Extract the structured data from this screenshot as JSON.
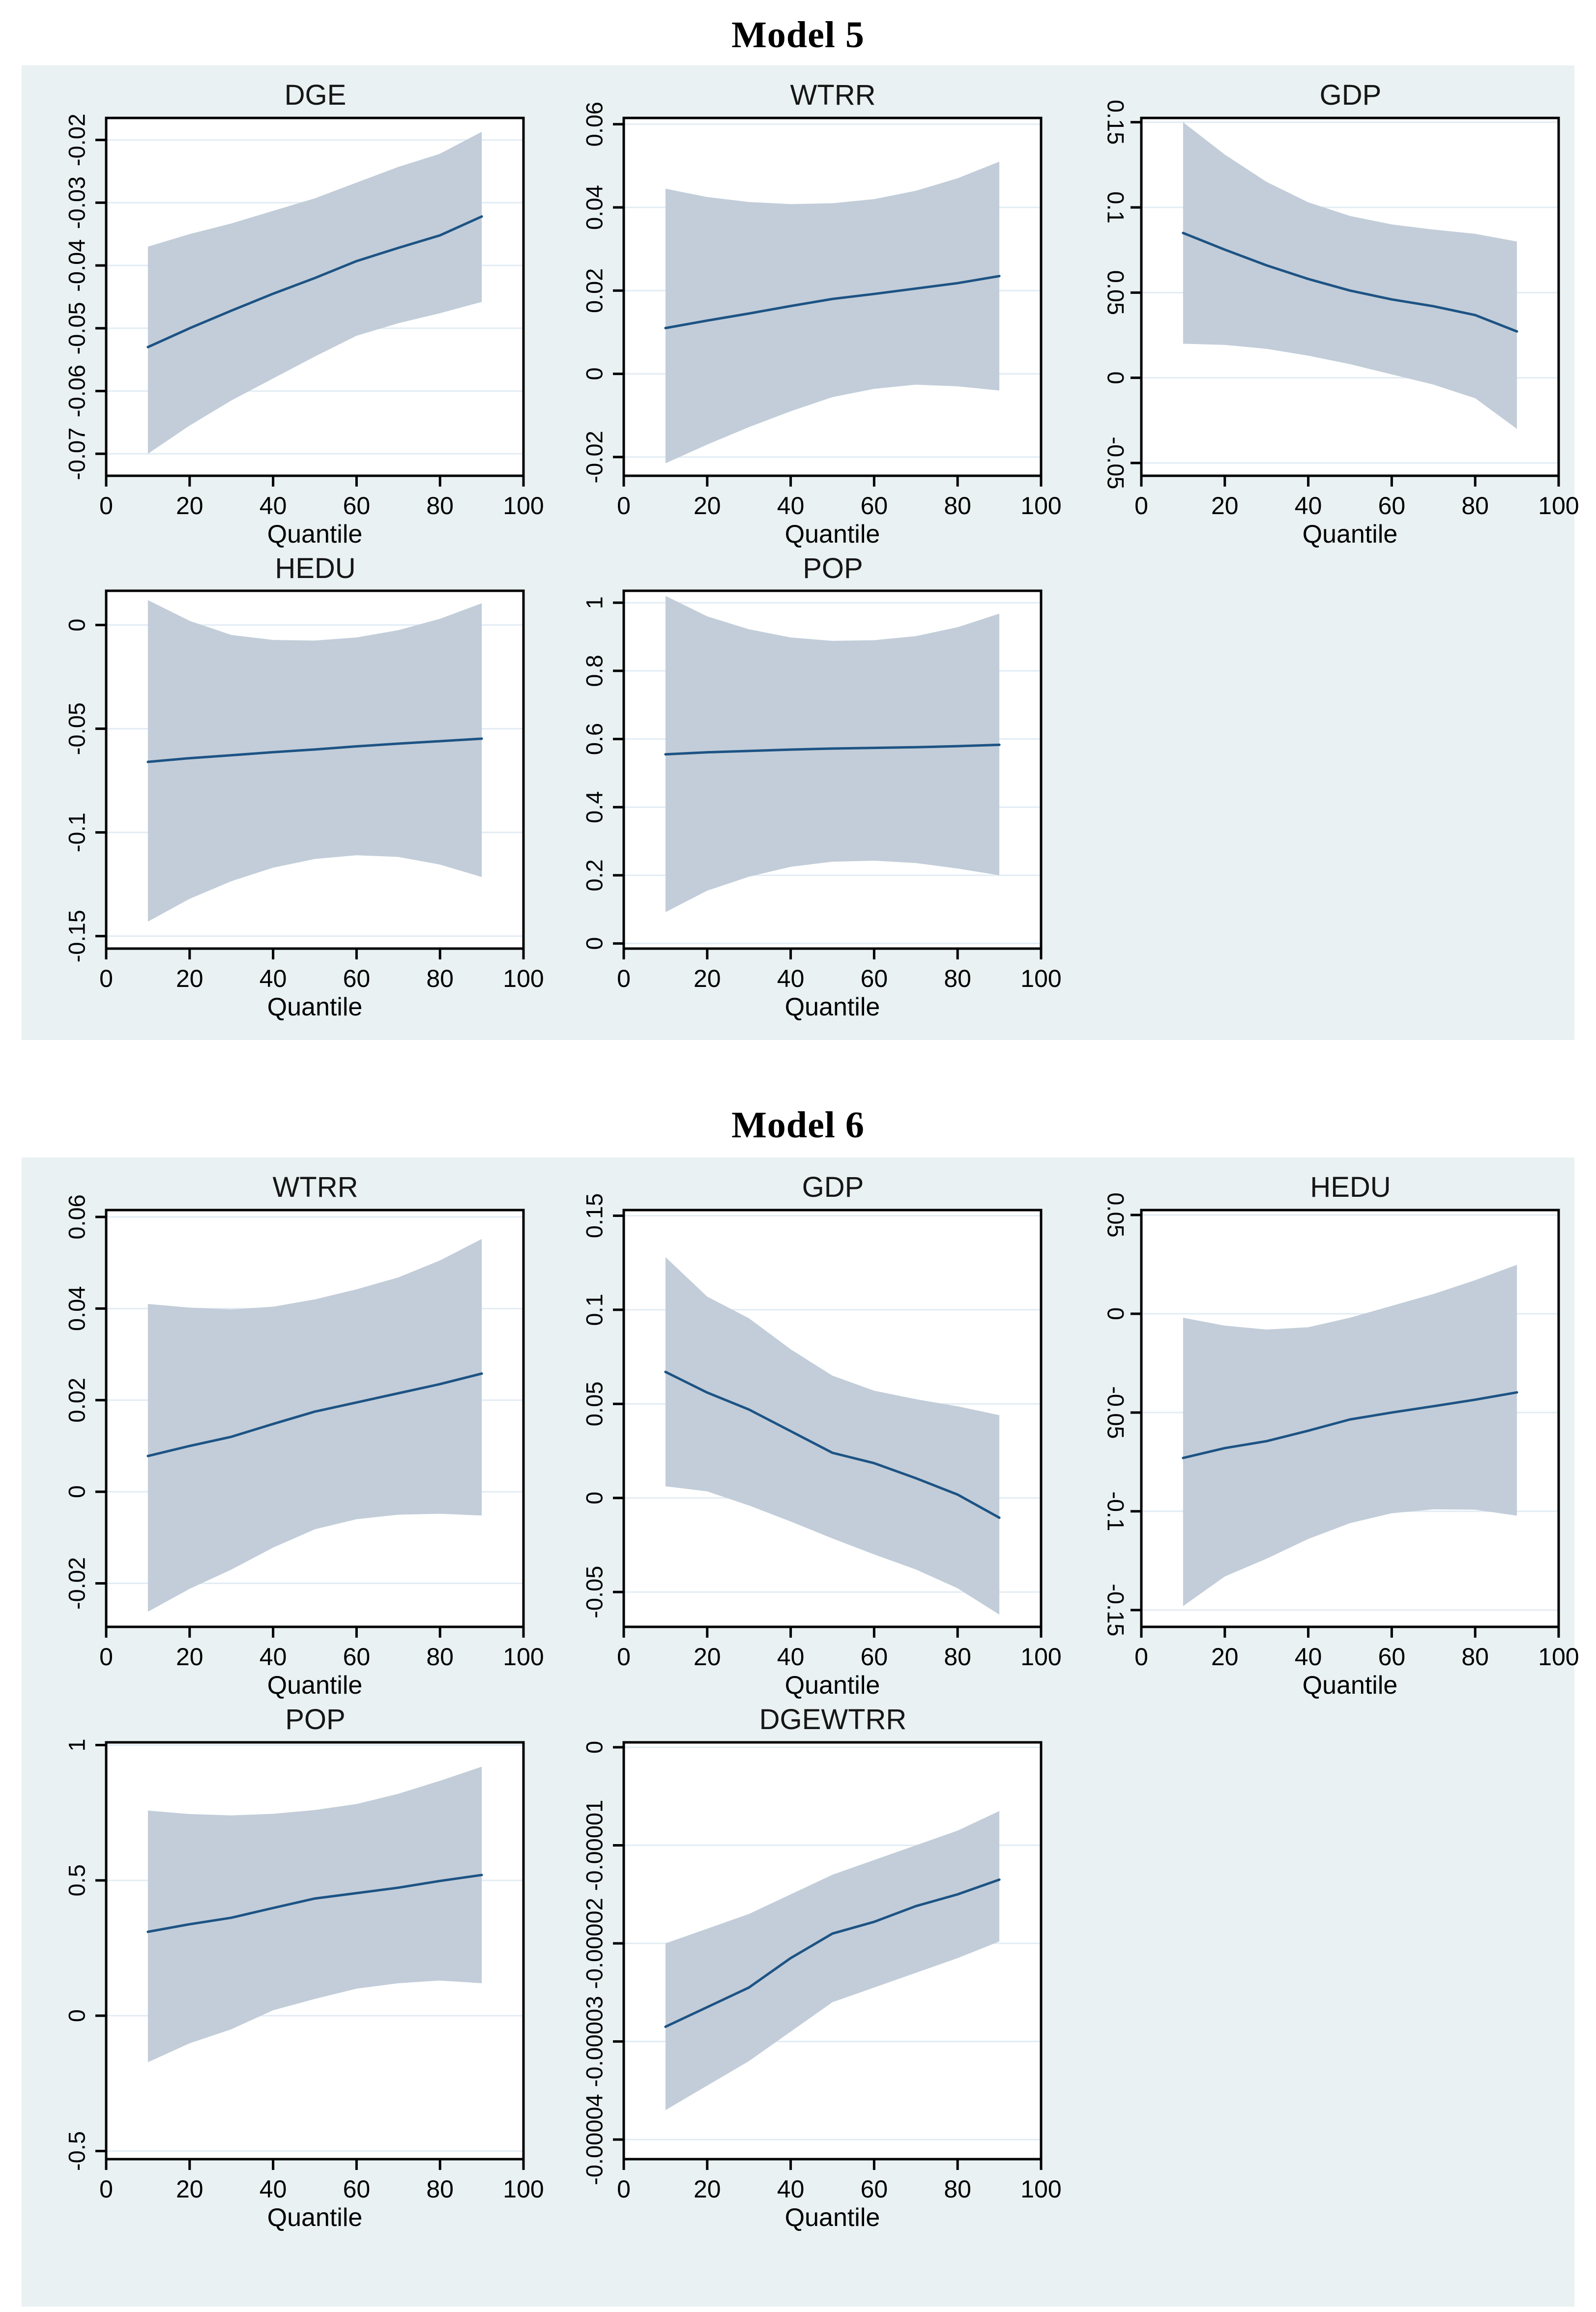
{
  "sections": [
    {
      "title": "Model 5"
    },
    {
      "title": "Model 6"
    }
  ],
  "colors": {
    "panel_bg": "#e9f1f2",
    "plot_bg": "#ffffff",
    "band": "#c2cdd9",
    "line": "#1d5384",
    "grid": "#e2ecf4",
    "axis": "#000000"
  },
  "chart_data": [
    {
      "model": "Model 5",
      "title": "DGE",
      "type": "line",
      "band_style": "confidence-interval",
      "xlabel": "Quantile",
      "x": [
        10,
        20,
        30,
        40,
        50,
        60,
        70,
        80,
        90
      ],
      "series": [
        {
          "name": "estimate",
          "values": [
            -0.053,
            -0.05,
            -0.0472,
            -0.0445,
            -0.042,
            -0.0393,
            -0.0372,
            -0.0352,
            -0.0322
          ]
        },
        {
          "name": "ci_upper",
          "values": [
            -0.037,
            -0.035,
            -0.0333,
            -0.0313,
            -0.0293,
            -0.0268,
            -0.0243,
            -0.0222,
            -0.0187
          ]
        },
        {
          "name": "ci_lower",
          "values": [
            -0.07,
            -0.0655,
            -0.0615,
            -0.058,
            -0.0545,
            -0.0512,
            -0.0492,
            -0.0476,
            -0.0458
          ]
        }
      ],
      "xlim": [
        0,
        100
      ],
      "xticks": [
        0,
        20,
        40,
        60,
        80,
        100
      ],
      "xtick_labels": [
        "0",
        "20",
        "40",
        "60",
        "80",
        "100"
      ],
      "ylim": [
        -0.0735,
        -0.0165
      ],
      "yticks": [
        -0.07,
        -0.06,
        -0.05,
        -0.04,
        -0.03,
        -0.02
      ],
      "ytick_labels": [
        "-0.07",
        "-0.06",
        "-0.05",
        "-0.04",
        "-0.03",
        "-0.02"
      ],
      "ytick_label_flipped": false,
      "grid": "horizontal",
      "legend": "none"
    },
    {
      "model": "Model 5",
      "title": "WTRR",
      "type": "line",
      "band_style": "confidence-interval",
      "xlabel": "Quantile",
      "x": [
        10,
        20,
        30,
        40,
        50,
        60,
        70,
        80,
        90
      ],
      "series": [
        {
          "name": "estimate",
          "values": [
            0.011,
            0.0128,
            0.0145,
            0.0163,
            0.018,
            0.0192,
            0.0205,
            0.0218,
            0.0235
          ]
        },
        {
          "name": "ci_upper",
          "values": [
            0.0445,
            0.0425,
            0.0413,
            0.0408,
            0.041,
            0.042,
            0.044,
            0.047,
            0.051
          ]
        },
        {
          "name": "ci_lower",
          "values": [
            -0.0215,
            -0.017,
            -0.0128,
            -0.009,
            -0.0056,
            -0.0036,
            -0.0026,
            -0.003,
            -0.004
          ]
        }
      ],
      "xlim": [
        0,
        100
      ],
      "xticks": [
        0,
        20,
        40,
        60,
        80,
        100
      ],
      "xtick_labels": [
        "0",
        "20",
        "40",
        "60",
        "80",
        "100"
      ],
      "ylim": [
        -0.0245,
        0.0615
      ],
      "yticks": [
        -0.02,
        0,
        0.02,
        0.04,
        0.06
      ],
      "ytick_labels": [
        "-0.02",
        "0",
        "0.02",
        "0.04",
        "0.06"
      ],
      "ytick_label_flipped": false,
      "grid": "horizontal",
      "legend": "none"
    },
    {
      "model": "Model 5",
      "title": "GDP",
      "type": "line",
      "band_style": "confidence-interval",
      "xlabel": "Quantile",
      "x": [
        10,
        20,
        30,
        40,
        50,
        60,
        70,
        80,
        90
      ],
      "series": [
        {
          "name": "estimate",
          "values": [
            0.085,
            0.0752,
            0.066,
            0.058,
            0.0512,
            0.046,
            0.042,
            0.0368,
            0.0272
          ]
        },
        {
          "name": "ci_upper",
          "values": [
            0.15,
            0.131,
            0.115,
            0.103,
            0.095,
            0.09,
            0.087,
            0.0845,
            0.08
          ]
        },
        {
          "name": "ci_lower",
          "values": [
            0.02,
            0.0193,
            0.017,
            0.013,
            0.008,
            0.002,
            -0.004,
            -0.012,
            -0.03
          ]
        }
      ],
      "xlim": [
        0,
        100
      ],
      "xticks": [
        0,
        20,
        40,
        60,
        80,
        100
      ],
      "xtick_labels": [
        "0",
        "20",
        "40",
        "60",
        "80",
        "100"
      ],
      "ylim": [
        -0.0575,
        0.1525
      ],
      "yticks": [
        -0.05,
        0,
        0.05,
        0.1,
        0.15
      ],
      "ytick_labels": [
        "-0.05",
        "0",
        "0.05",
        "0.1",
        "0.15"
      ],
      "ytick_label_flipped": true,
      "grid": "horizontal",
      "legend": "none"
    },
    {
      "model": "Model 5",
      "title": "HEDU",
      "type": "line",
      "band_style": "confidence-interval",
      "xlabel": "Quantile",
      "x": [
        10,
        20,
        30,
        40,
        50,
        60,
        70,
        80,
        90
      ],
      "series": [
        {
          "name": "estimate",
          "values": [
            -0.066,
            -0.0642,
            -0.0628,
            -0.0613,
            -0.06,
            -0.0585,
            -0.0572,
            -0.056,
            -0.0548
          ]
        },
        {
          "name": "ci_upper",
          "values": [
            0.012,
            0.002,
            -0.0048,
            -0.0072,
            -0.0075,
            -0.006,
            -0.0025,
            0.003,
            0.0105
          ]
        },
        {
          "name": "ci_lower",
          "values": [
            -0.143,
            -0.132,
            -0.1235,
            -0.117,
            -0.1128,
            -0.111,
            -0.1118,
            -0.1155,
            -0.1215
          ]
        }
      ],
      "xlim": [
        0,
        100
      ],
      "xticks": [
        0,
        20,
        40,
        60,
        80,
        100
      ],
      "xtick_labels": [
        "0",
        "20",
        "40",
        "60",
        "80",
        "100"
      ],
      "ylim": [
        -0.156,
        0.0165
      ],
      "yticks": [
        -0.15,
        -0.1,
        -0.05,
        0
      ],
      "ytick_labels": [
        "-0.15",
        "-0.1",
        "-0.05",
        "0"
      ],
      "ytick_label_flipped": false,
      "grid": "horizontal",
      "legend": "none"
    },
    {
      "model": "Model 5",
      "title": "POP",
      "type": "line",
      "band_style": "confidence-interval",
      "xlabel": "Quantile",
      "x": [
        10,
        20,
        30,
        40,
        50,
        60,
        70,
        80,
        90
      ],
      "series": [
        {
          "name": "estimate",
          "values": [
            0.555,
            0.561,
            0.565,
            0.569,
            0.572,
            0.574,
            0.576,
            0.579,
            0.583
          ]
        },
        {
          "name": "ci_upper",
          "values": [
            1.02,
            0.96,
            0.922,
            0.898,
            0.888,
            0.89,
            0.902,
            0.928,
            0.968
          ]
        },
        {
          "name": "ci_lower",
          "values": [
            0.092,
            0.155,
            0.196,
            0.225,
            0.24,
            0.243,
            0.236,
            0.22,
            0.2
          ]
        }
      ],
      "xlim": [
        0,
        100
      ],
      "xticks": [
        0,
        20,
        40,
        60,
        80,
        100
      ],
      "xtick_labels": [
        "0",
        "20",
        "40",
        "60",
        "80",
        "100"
      ],
      "ylim": [
        -0.015,
        1.035
      ],
      "yticks": [
        0,
        0.2,
        0.4,
        0.6,
        0.8,
        1
      ],
      "ytick_labels": [
        "0",
        "0.2",
        "0.4",
        "0.6",
        "0.8",
        "1"
      ],
      "ytick_label_flipped": false,
      "grid": "horizontal",
      "legend": "none"
    },
    {
      "model": "Model 6",
      "title": "WTRR",
      "type": "line",
      "band_style": "confidence-interval",
      "xlabel": "Quantile",
      "x": [
        10,
        20,
        30,
        40,
        50,
        60,
        70,
        80,
        90
      ],
      "series": [
        {
          "name": "estimate",
          "values": [
            0.0078,
            0.01,
            0.012,
            0.0148,
            0.0175,
            0.0195,
            0.0215,
            0.0235,
            0.0258
          ]
        },
        {
          "name": "ci_upper",
          "values": [
            0.041,
            0.0402,
            0.0398,
            0.0404,
            0.042,
            0.0442,
            0.0468,
            0.0505,
            0.0552
          ]
        },
        {
          "name": "ci_lower",
          "values": [
            -0.0262,
            -0.0212,
            -0.017,
            -0.0122,
            -0.0082,
            -0.006,
            -0.005,
            -0.0048,
            -0.0052
          ]
        }
      ],
      "xlim": [
        0,
        100
      ],
      "xticks": [
        0,
        20,
        40,
        60,
        80,
        100
      ],
      "xtick_labels": [
        "0",
        "20",
        "40",
        "60",
        "80",
        "100"
      ],
      "ylim": [
        -0.0295,
        0.0615
      ],
      "yticks": [
        -0.02,
        0,
        0.02,
        0.04,
        0.06
      ],
      "ytick_labels": [
        "-0.02",
        "0",
        "0.02",
        "0.04",
        "0.06"
      ],
      "ytick_label_flipped": false,
      "grid": "horizontal",
      "legend": "none"
    },
    {
      "model": "Model 6",
      "title": "GDP",
      "type": "line",
      "band_style": "confidence-interval",
      "xlabel": "Quantile",
      "x": [
        10,
        20,
        30,
        40,
        50,
        60,
        70,
        80,
        90
      ],
      "series": [
        {
          "name": "estimate",
          "values": [
            0.067,
            0.056,
            0.047,
            0.0355,
            0.024,
            0.0185,
            0.0105,
            0.0018,
            -0.0105
          ]
        },
        {
          "name": "ci_upper",
          "values": [
            0.128,
            0.107,
            0.0955,
            0.079,
            0.065,
            0.057,
            0.0525,
            0.0487,
            0.044
          ]
        },
        {
          "name": "ci_lower",
          "values": [
            0.0062,
            0.0035,
            -0.004,
            -0.0125,
            -0.0215,
            -0.03,
            -0.038,
            -0.048,
            -0.062
          ]
        }
      ],
      "xlim": [
        0,
        100
      ],
      "xticks": [
        0,
        20,
        40,
        60,
        80,
        100
      ],
      "xtick_labels": [
        "0",
        "20",
        "40",
        "60",
        "80",
        "100"
      ],
      "ylim": [
        -0.0685,
        0.153
      ],
      "yticks": [
        -0.05,
        0,
        0.05,
        0.1,
        0.15
      ],
      "ytick_labels": [
        "-0.05",
        "0",
        "0.05",
        "0.1",
        "0.15"
      ],
      "ytick_label_flipped": false,
      "grid": "horizontal",
      "legend": "none"
    },
    {
      "model": "Model 6",
      "title": "HEDU",
      "type": "line",
      "band_style": "confidence-interval",
      "xlabel": "Quantile",
      "x": [
        10,
        20,
        30,
        40,
        50,
        60,
        70,
        80,
        90
      ],
      "series": [
        {
          "name": "estimate",
          "values": [
            -0.073,
            -0.068,
            -0.0645,
            -0.0592,
            -0.0535,
            -0.05,
            -0.0468,
            -0.0435,
            -0.0398
          ]
        },
        {
          "name": "ci_upper",
          "values": [
            -0.002,
            -0.006,
            -0.008,
            -0.0068,
            -0.002,
            0.004,
            0.01,
            0.017,
            0.0248
          ]
        },
        {
          "name": "ci_lower",
          "values": [
            -0.148,
            -0.133,
            -0.124,
            -0.114,
            -0.106,
            -0.101,
            -0.099,
            -0.0992,
            -0.1022
          ]
        }
      ],
      "xlim": [
        0,
        100
      ],
      "xticks": [
        0,
        20,
        40,
        60,
        80,
        100
      ],
      "xtick_labels": [
        "0",
        "20",
        "40",
        "60",
        "80",
        "100"
      ],
      "ylim": [
        -0.1585,
        0.0525
      ],
      "yticks": [
        -0.15,
        -0.1,
        -0.05,
        0,
        0.05
      ],
      "ytick_labels": [
        "-0.15",
        "-0.1",
        "-0.05",
        "0",
        "0.05"
      ],
      "ytick_label_flipped": true,
      "grid": "horizontal",
      "legend": "none"
    },
    {
      "model": "Model 6",
      "title": "POP",
      "type": "line",
      "band_style": "confidence-interval",
      "xlabel": "Quantile",
      "x": [
        10,
        20,
        30,
        40,
        50,
        60,
        70,
        80,
        90
      ],
      "series": [
        {
          "name": "estimate",
          "values": [
            0.31,
            0.338,
            0.362,
            0.398,
            0.433,
            0.453,
            0.473,
            0.498,
            0.52
          ]
        },
        {
          "name": "ci_upper",
          "values": [
            0.758,
            0.745,
            0.74,
            0.746,
            0.76,
            0.782,
            0.82,
            0.868,
            0.92
          ]
        },
        {
          "name": "ci_lower",
          "values": [
            -0.172,
            -0.102,
            -0.05,
            0.02,
            0.062,
            0.1,
            0.12,
            0.13,
            0.12
          ]
        }
      ],
      "xlim": [
        0,
        100
      ],
      "xticks": [
        0,
        20,
        40,
        60,
        80,
        100
      ],
      "xtick_labels": [
        "0",
        "20",
        "40",
        "60",
        "80",
        "100"
      ],
      "ylim": [
        -0.53,
        1.01
      ],
      "yticks": [
        -0.5,
        0,
        0.5,
        1
      ],
      "ytick_labels": [
        "-0.5",
        "0",
        "0.5",
        "1"
      ],
      "ytick_label_flipped": false,
      "grid": "horizontal",
      "legend": "none"
    },
    {
      "model": "Model 6",
      "title": "DGEWTRR",
      "type": "line",
      "band_style": "confidence-interval",
      "xlabel": "Quantile",
      "x": [
        10,
        20,
        30,
        40,
        50,
        60,
        70,
        80,
        90
      ],
      "series": [
        {
          "name": "estimate",
          "values": [
            -2.85e-05,
            -2.65e-05,
            -2.45e-05,
            -2.15e-05,
            -1.9e-05,
            -1.78e-05,
            -1.62e-05,
            -1.5e-05,
            -1.35e-05
          ]
        },
        {
          "name": "ci_upper",
          "values": [
            -2e-05,
            -1.85e-05,
            -1.7e-05,
            -1.5e-05,
            -1.3e-05,
            -1.15e-05,
            -1e-05,
            -8.5e-06,
            -6.5e-06
          ]
        },
        {
          "name": "ci_lower",
          "values": [
            -3.7e-05,
            -3.45e-05,
            -3.2e-05,
            -2.9e-05,
            -2.6e-05,
            -2.45e-05,
            -2.3e-05,
            -2.15e-05,
            -1.98e-05
          ]
        }
      ],
      "xlim": [
        0,
        100
      ],
      "xticks": [
        0,
        20,
        40,
        60,
        80,
        100
      ],
      "xtick_labels": [
        "0",
        "20",
        "40",
        "60",
        "80",
        "100"
      ],
      "ylim": [
        -4.2e-05,
        5e-07
      ],
      "yticks": [
        0,
        -1e-05,
        -2e-05,
        -3e-05,
        -4e-05
      ],
      "ytick_labels": [
        "0",
        "-0.00001",
        "-0.00002",
        "-0.00003",
        "-0.00004"
      ],
      "ytick_label_flipped": false,
      "grid": "horizontal",
      "legend": "none"
    }
  ]
}
